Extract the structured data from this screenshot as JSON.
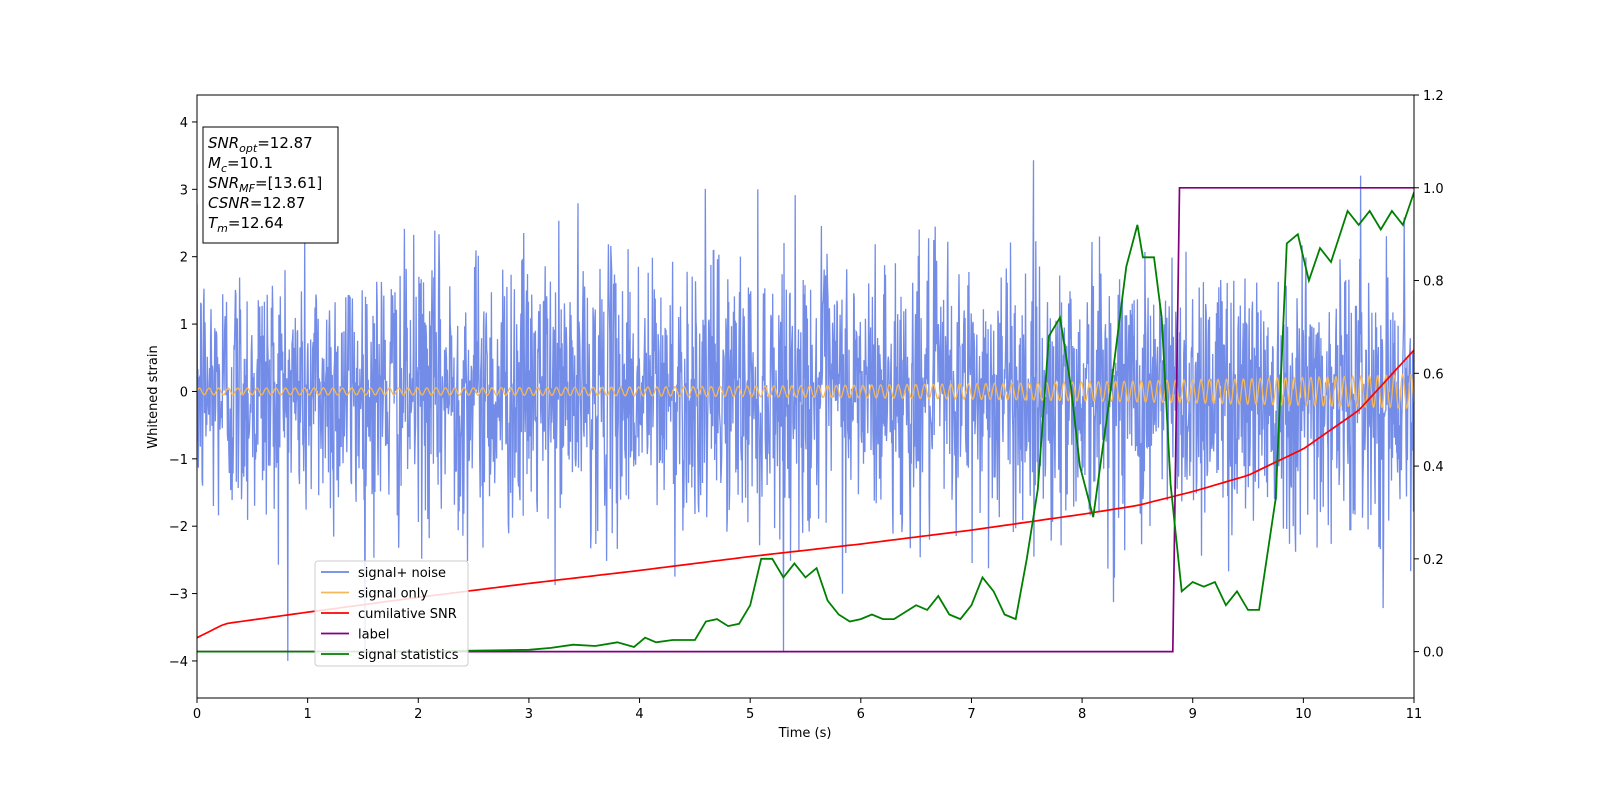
{
  "chart_data": {
    "type": "line",
    "xlabel": "Time (s)",
    "ylabel": "Whitened strain",
    "xlim": [
      0,
      11
    ],
    "ylim_left": [
      -4.55,
      4.4
    ],
    "ylim_right": [
      -0.1,
      1.2
    ],
    "xticks": [
      "0",
      "1",
      "2",
      "3",
      "4",
      "5",
      "6",
      "7",
      "8",
      "9",
      "10",
      "11"
    ],
    "yticks_left": [
      "−4",
      "−3",
      "−2",
      "−1",
      "0",
      "1",
      "2",
      "3",
      "4"
    ],
    "yticks_right": [
      "0.0",
      "0.2",
      "0.4",
      "0.6",
      "0.8",
      "1.0",
      "1.2"
    ],
    "grid": false,
    "legend_placement": "lower-left",
    "info_box": [
      {
        "main": "SNR",
        "sub": "opt",
        "value": "=12.87"
      },
      {
        "main": "M",
        "sub": "c",
        "value": "=10.1"
      },
      {
        "main": "SNR",
        "sub": "MF",
        "value": "=[13.61]"
      },
      {
        "main": "CSNR",
        "sub": "",
        "value": "=12.87"
      },
      {
        "main": "T",
        "sub": "m",
        "value": "=12.64"
      }
    ],
    "series": [
      {
        "name": "signal+ noise",
        "color": "#6b86e6",
        "axis": "left",
        "kind": "noise",
        "sigma": 1.0,
        "max_abs": 4.0
      },
      {
        "name": "signal only",
        "color": "#f5b858",
        "axis": "left",
        "kind": "chirp",
        "amplitude_start": 0.05,
        "amplitude_end": 0.25,
        "cycles_per_second": 11.5
      },
      {
        "name": "cumilative SNR",
        "color": "#ff0000",
        "axis": "right",
        "x": [
          0,
          0.25,
          1,
          2,
          3,
          4,
          5,
          6,
          7,
          8,
          8.5,
          9,
          9.5,
          10,
          10.5,
          11
        ],
        "y": [
          0.03,
          0.06,
          0.085,
          0.117,
          0.147,
          0.175,
          0.205,
          0.232,
          0.262,
          0.296,
          0.315,
          0.345,
          0.38,
          0.437,
          0.52,
          0.65
        ]
      },
      {
        "name": "label",
        "color": "#800080",
        "axis": "right",
        "x": [
          0,
          8.82,
          8.88,
          11
        ],
        "y": [
          0,
          0,
          1,
          1
        ]
      },
      {
        "name": "signal statistics",
        "color": "#008000",
        "axis": "right",
        "x": [
          0,
          1,
          2,
          2.5,
          3,
          3.2,
          3.4,
          3.6,
          3.8,
          3.95,
          4.05,
          4.15,
          4.3,
          4.5,
          4.6,
          4.7,
          4.8,
          4.9,
          5.0,
          5.1,
          5.2,
          5.3,
          5.4,
          5.5,
          5.6,
          5.7,
          5.8,
          5.9,
          6.0,
          6.1,
          6.2,
          6.3,
          6.5,
          6.6,
          6.7,
          6.8,
          6.9,
          7.0,
          7.1,
          7.2,
          7.3,
          7.4,
          7.5,
          7.6,
          7.7,
          7.8,
          7.9,
          7.98,
          8.1,
          8.25,
          8.4,
          8.5,
          8.55,
          8.65,
          8.72,
          8.8,
          8.9,
          9.0,
          9.1,
          9.2,
          9.3,
          9.4,
          9.5,
          9.6,
          9.75,
          9.85,
          9.95,
          10.05,
          10.15,
          10.25,
          10.4,
          10.5,
          10.6,
          10.7,
          10.8,
          10.9,
          11.0
        ],
        "y": [
          0,
          0,
          0,
          0.002,
          0.004,
          0.008,
          0.015,
          0.012,
          0.02,
          0.01,
          0.03,
          0.02,
          0.025,
          0.025,
          0.065,
          0.07,
          0.055,
          0.06,
          0.1,
          0.2,
          0.2,
          0.16,
          0.19,
          0.16,
          0.18,
          0.11,
          0.08,
          0.065,
          0.07,
          0.08,
          0.07,
          0.07,
          0.1,
          0.09,
          0.12,
          0.08,
          0.07,
          0.1,
          0.16,
          0.13,
          0.08,
          0.07,
          0.2,
          0.35,
          0.68,
          0.72,
          0.57,
          0.4,
          0.29,
          0.55,
          0.83,
          0.92,
          0.85,
          0.85,
          0.72,
          0.36,
          0.13,
          0.15,
          0.14,
          0.15,
          0.1,
          0.13,
          0.09,
          0.09,
          0.33,
          0.88,
          0.9,
          0.8,
          0.87,
          0.84,
          0.95,
          0.92,
          0.95,
          0.91,
          0.95,
          0.92,
          0.99
        ]
      }
    ]
  }
}
